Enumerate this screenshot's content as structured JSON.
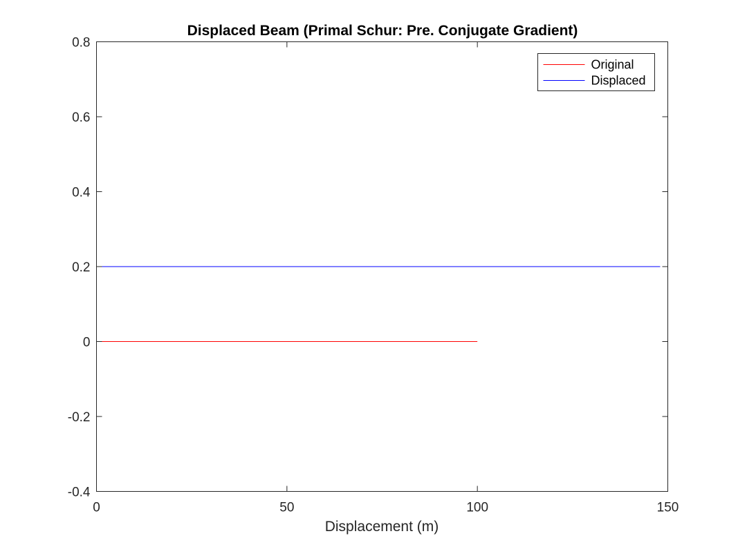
{
  "chart_data": {
    "type": "line",
    "title": "Displaced Beam (Primal Schur: Pre. Conjugate Gradient)",
    "xlabel": "Displacement (m)",
    "ylabel": "",
    "xlim": [
      0,
      150
    ],
    "ylim": [
      -0.4,
      0.8
    ],
    "xticks": [
      0,
      50,
      100,
      150
    ],
    "xtick_labels": [
      "0",
      "50",
      "100",
      "150"
    ],
    "yticks": [
      -0.4,
      -0.2,
      0,
      0.2,
      0.4,
      0.6,
      0.8
    ],
    "ytick_labels": [
      "-0.4",
      "-0.2",
      "0",
      "0.2",
      "0.4",
      "0.6",
      "0.8"
    ],
    "grid": false,
    "legend_position": "top-right",
    "series": [
      {
        "name": "Original",
        "color": "#ff0000",
        "x": [
          0,
          100
        ],
        "y": [
          0,
          0
        ]
      },
      {
        "name": "Displaced",
        "color": "#0000ff",
        "x": [
          0,
          148
        ],
        "y": [
          0.2,
          0.2
        ]
      }
    ]
  }
}
